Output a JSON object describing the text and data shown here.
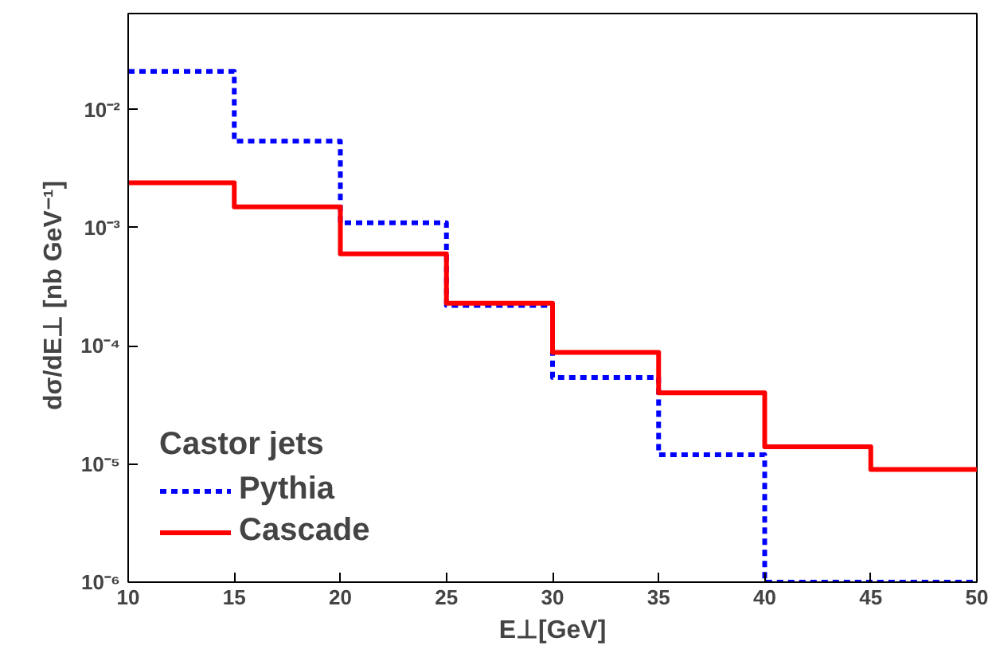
{
  "chart_data": {
    "type": "histogram",
    "xlabel": "E⊥[GeV]",
    "ylabel": "dσ/dE⊥ [nb GeV⁻¹]",
    "legend_title": "Castor jets",
    "bins": [
      10,
      15,
      20,
      25,
      30,
      35,
      40,
      45,
      50
    ],
    "series": [
      {
        "name": "Pythia",
        "color": "#0000ff",
        "line_style": "dotted",
        "values": [
          0.021,
          0.0054,
          0.0011,
          0.00022,
          5.4e-05,
          1.2e-05,
          1e-06,
          1e-06
        ]
      },
      {
        "name": "Cascade",
        "color": "#ff0000",
        "line_style": "solid",
        "values": [
          0.0024,
          0.0015,
          0.0006,
          0.00023,
          8.8e-05,
          4e-05,
          1.4e-05,
          9e-06
        ]
      }
    ],
    "xlim": [
      10,
      50
    ],
    "xticks": [
      10,
      15,
      20,
      25,
      30,
      35,
      40,
      45,
      50
    ],
    "ylim": [
      1e-06,
      0.065
    ],
    "yticks": [
      {
        "value": 1e-06,
        "label": "10⁻⁶"
      },
      {
        "value": 1e-05,
        "label": "10⁻⁵"
      },
      {
        "value": 0.0001,
        "label": "10⁻⁴"
      },
      {
        "value": 0.001,
        "label": "10⁻³"
      },
      {
        "value": 0.01,
        "label": "10⁻²"
      }
    ],
    "log": "y",
    "grid": false,
    "legend": "bottom left"
  }
}
